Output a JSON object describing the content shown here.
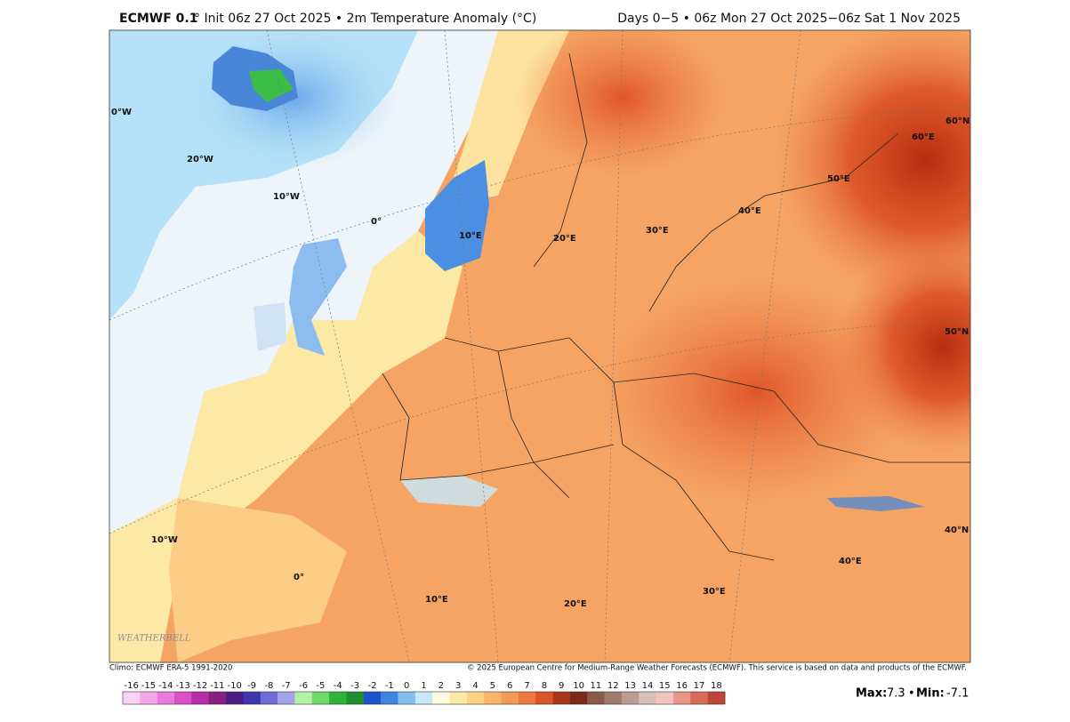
{
  "header": {
    "model": "ECMWF 0.1",
    "title": "° Init 06z 27 Oct 2025 • 2m Temperature Anomaly (°C)",
    "period": "Days 0−5 • 06z Mon 27 Oct 2025−06z Sat 1 Nov 2025"
  },
  "map": {
    "grid_labels": [
      "0°W",
      "20°W",
      "10°W",
      "0°",
      "10°E",
      "20°E",
      "30°E",
      "40°E",
      "50°E",
      "60°E",
      "60°N",
      "50°N",
      "40°N",
      "10°W",
      "0°",
      "10°E",
      "20°E",
      "30°E",
      "40°E"
    ],
    "watermark": "WEATHERBELL"
  },
  "footer": {
    "climo": "Climo: ECMWF ERA-5 1991-2020",
    "copyright": "© 2025 European Centre for Medium-Range Weather Forecasts (ECMWF). This service is based on data and products of the ECMWF."
  },
  "colorbar": {
    "ticks": [
      -16,
      -15,
      -14,
      -13,
      -12,
      -11,
      -10,
      -9,
      -8,
      -7,
      -6,
      -5,
      -4,
      -3,
      -2,
      -1,
      0,
      1,
      2,
      3,
      4,
      5,
      6,
      7,
      8,
      9,
      10,
      11,
      12,
      13,
      14,
      15,
      16,
      17,
      18
    ],
    "colors": [
      "#fbd3f3",
      "#f4a6e9",
      "#ea7bdc",
      "#d94fc8",
      "#b52ca6",
      "#86207f",
      "#4a1c82",
      "#3b37b0",
      "#6f6cd8",
      "#a5a3ec",
      "#b4f0a8",
      "#6fd96a",
      "#2fb43a",
      "#1f8f2e",
      "#1c55c8",
      "#3f86e0",
      "#86bdf0",
      "#c6e8fa",
      "#fffbe0",
      "#fde9a6",
      "#fbd184",
      "#f8b46a",
      "#f39a55",
      "#ec7a3e",
      "#d9552a",
      "#a8361c",
      "#7a2a1a",
      "#8a5a4a",
      "#a07a6c",
      "#bb9c92",
      "#d8bfb8",
      "#f0c4bc",
      "#e89688",
      "#d86a5a",
      "#c0443a"
    ]
  },
  "stats": {
    "max_label": "Max:",
    "max": 7.3,
    "separator": "•",
    "min_label": "Min:",
    "min": -7.1
  }
}
